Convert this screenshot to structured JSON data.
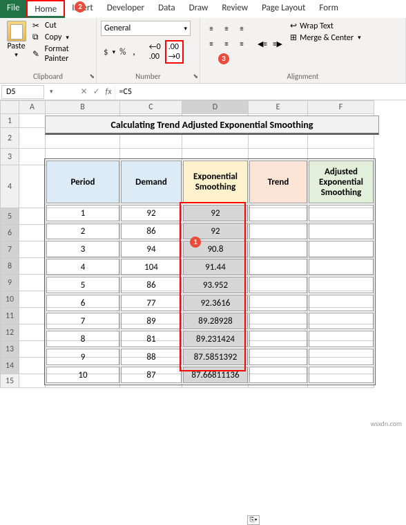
{
  "tabs": {
    "file": "File",
    "home": "Home",
    "insert": "Insert",
    "developer": "Developer",
    "data": "Data",
    "draw": "Draw",
    "review": "Review",
    "page_layout": "Page Layout",
    "formulas": "Form"
  },
  "ribbon": {
    "clipboard": {
      "label": "Clipboard",
      "paste": "Paste",
      "cut": "Cut",
      "copy": "Copy",
      "format_painter": "Format Painter"
    },
    "number": {
      "label": "Number",
      "format": "General",
      "currency": "$",
      "percent": "%",
      "comma": ","
    },
    "alignment": {
      "label": "Alignment",
      "wrap": "Wrap Text",
      "merge": "Merge & Center"
    }
  },
  "name_box": "D5",
  "formula": "=C5",
  "columns": [
    "A",
    "B",
    "C",
    "D",
    "E",
    "F"
  ],
  "title": "Calculating Trend Adjusted Exponential Smoothing",
  "headers": {
    "period": "Period",
    "demand": "Demand",
    "exp": "Exponential Smoothing",
    "trend": "Trend",
    "adj": "Adjusted Exponential Smoothing"
  },
  "rows": [
    {
      "n": "1",
      "period": "1",
      "demand": "92",
      "exp": "92"
    },
    {
      "n": "2",
      "period": "2",
      "demand": "86",
      "exp": "92"
    },
    {
      "n": "3",
      "period": "3",
      "demand": "94",
      "exp": "90.8"
    },
    {
      "n": "4",
      "period": "4",
      "demand": "104",
      "exp": "91.44"
    },
    {
      "n": "5",
      "period": "5",
      "demand": "86",
      "exp": "93.952"
    },
    {
      "n": "6",
      "period": "6",
      "demand": "77",
      "exp": "92.3616"
    },
    {
      "n": "7",
      "period": "7",
      "demand": "89",
      "exp": "89.28928"
    },
    {
      "n": "8",
      "period": "8",
      "demand": "81",
      "exp": "89.231424"
    },
    {
      "n": "9",
      "period": "9",
      "demand": "88",
      "exp": "87.5851392"
    },
    {
      "n": "10",
      "period": "10",
      "demand": "87",
      "exp": "87.66811136"
    }
  ],
  "watermark": "wsxdn.com",
  "callouts": {
    "c1": "1",
    "c2": "2",
    "c3": "3"
  }
}
